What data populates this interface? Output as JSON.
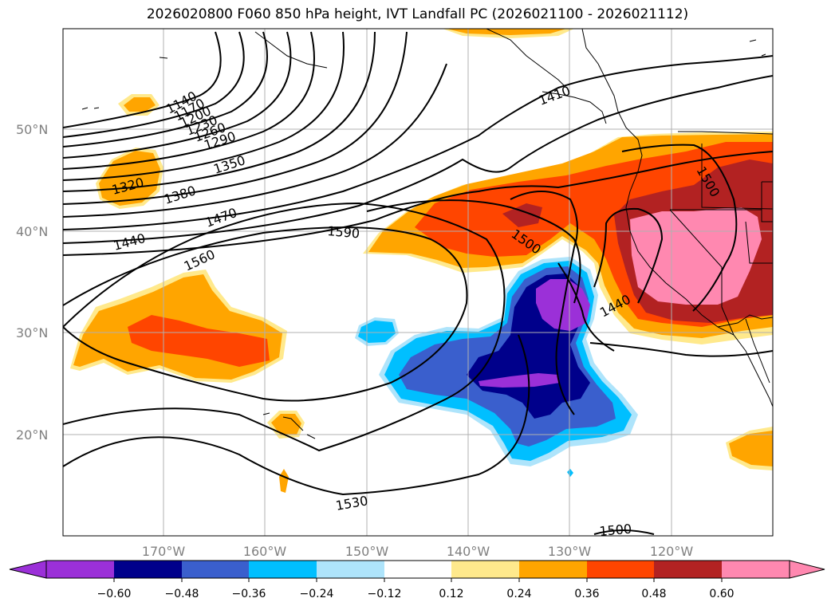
{
  "title": "2026020800 F060 850 hPa height, IVT Landfall PC (2026021100 - 2026021112)",
  "map": {
    "lat_labels": [
      "50°N",
      "40°N",
      "30°N",
      "20°N"
    ],
    "lon_labels": [
      "170°W",
      "160°W",
      "150°W",
      "140°W",
      "130°W",
      "120°W"
    ],
    "contour_labels": [
      "1140",
      "1170",
      "1200",
      "1230",
      "1260",
      "1290",
      "1320",
      "1350",
      "1380",
      "1440",
      "1470",
      "1560",
      "1590",
      "1500",
      "1440",
      "1530",
      "1500",
      "1500",
      "1410"
    ],
    "colors": {
      "land_outline": "#000000",
      "grid": "#b0b0b0",
      "height_contour": "#000000"
    }
  },
  "colorbar": {
    "ticks": [
      "−0.60",
      "−0.48",
      "−0.36",
      "−0.24",
      "−0.12",
      "0.12",
      "0.24",
      "0.36",
      "0.48",
      "0.60"
    ],
    "colors": [
      "#9b30d8",
      "#00008b",
      "#3a5fcd",
      "#00bfff",
      "#aee4fb",
      "#ffffff",
      "#ffe98c",
      "#ffa500",
      "#ff4500",
      "#b22222",
      "#ff88b0"
    ]
  }
}
